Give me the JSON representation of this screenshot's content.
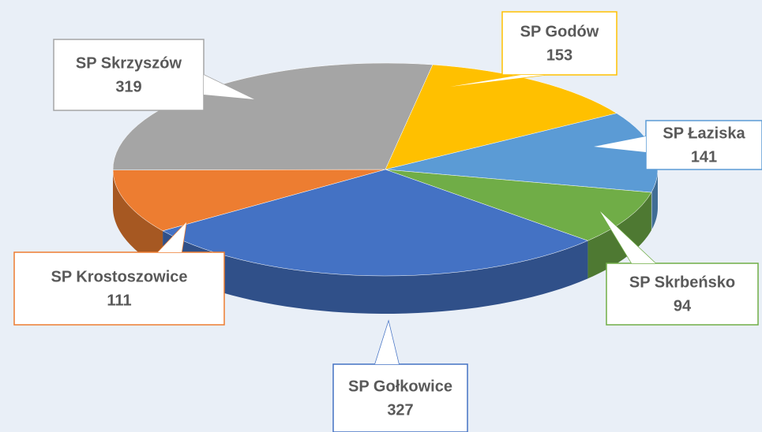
{
  "chart_data": {
    "type": "pie",
    "categories": [
      "SP Godów",
      "SP Łaziska",
      "SP Skrbeńsko",
      "SP Gołkowice",
      "SP Krostoszowice",
      "SP Skrzyszów"
    ],
    "values": [
      153,
      141,
      94,
      327,
      111,
      319
    ],
    "colors": [
      "#ffc000",
      "#5b9bd5",
      "#70ad47",
      "#4472c4",
      "#ed7d31",
      "#a5a5a5"
    ]
  }
}
